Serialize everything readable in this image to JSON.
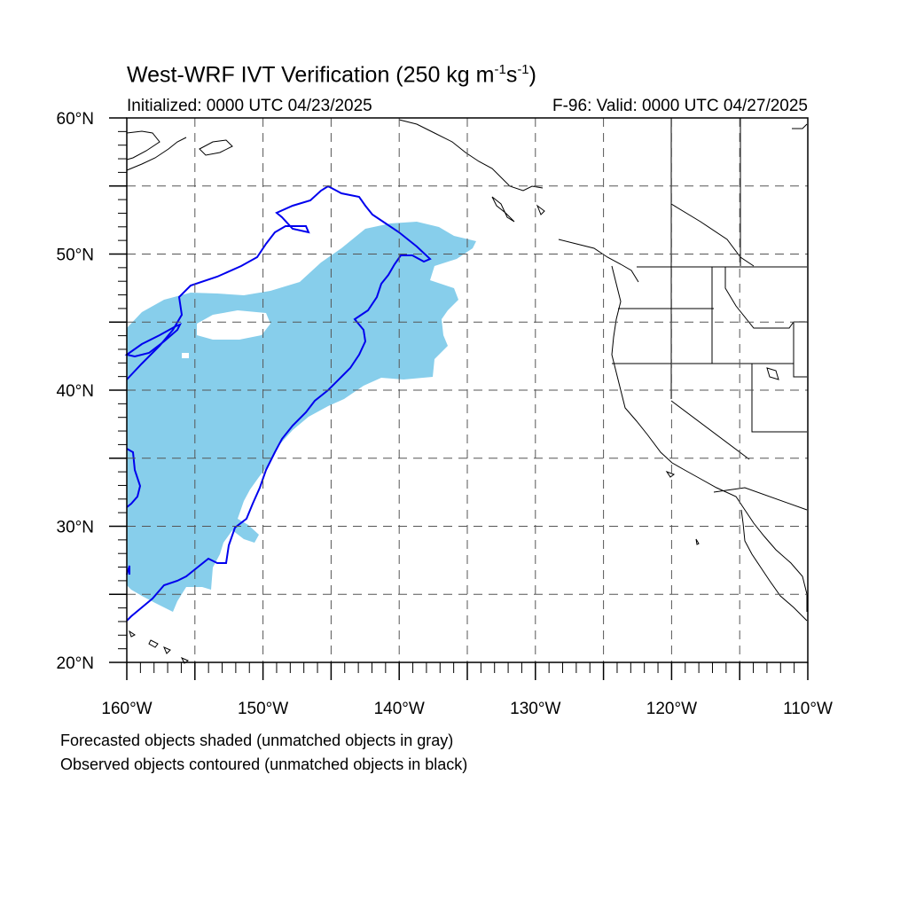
{
  "title": {
    "main": "West-WRF IVT Verification (250 kg m",
    "sup1": "-1",
    "mid": "s",
    "sup2": "-1",
    "end": ")"
  },
  "subtitle_left": "Initialized: 0000 UTC 04/23/2025",
  "subtitle_right": "F-96: Valid: 0000 UTC 04/27/2025",
  "map": {
    "lon_range": [
      -160,
      -110
    ],
    "lat_range": [
      20,
      60
    ],
    "x_tick_labels": [
      "160°W",
      "150°W",
      "140°W",
      "130°W",
      "120°W",
      "110°W"
    ],
    "y_tick_labels": [
      "20°N",
      "30°N",
      "40°N",
      "50°N",
      "60°N"
    ],
    "grid": "dashed every 5 degrees",
    "forecast_fill_color": "#87ceeb",
    "observed_contour_color": "#0000ee",
    "coastline_color": "#000000"
  },
  "notes": [
    "Forecasted objects shaded (unmatched objects in gray)",
    "Observed objects contoured (unmatched objects in black)"
  ]
}
